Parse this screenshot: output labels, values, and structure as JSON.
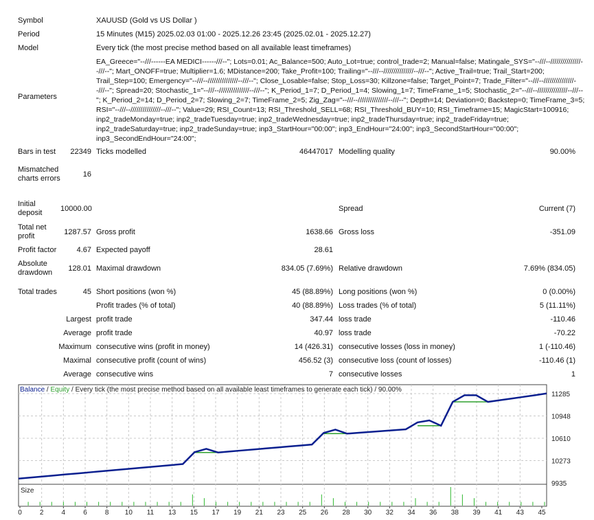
{
  "header": {
    "symbol_label": "Symbol",
    "symbol": "XAUUSD (Gold vs US Dollar )",
    "period_label": "Period",
    "period": "15 Minutes (M15) 2025.02.03 01:00 - 2025.12.26 23:45 (2025.02.01 - 2025.12.27)",
    "model_label": "Model",
    "model": "Every tick (the most precise method based on all available least timeframes)",
    "parameters_label": "Parameters",
    "parameters": "EA_Greece=\"--///------EA MEDICI------///--\"; Lots=0.01; Ac_Balance=500; Auto_Lot=true; control_trade=2; Manual=false; Matingale_SYS=\"--///--///////////////--///--\"; Mart_ONOFF=true; Multiplier=1.6; MDistance=200; Take_Profit=100; Trailing=\"--///--///////////////--///--\"; Active_Trail=true; Trail_Start=200; Trail_Step=100; Emergency=\"--///--///////////////--///--\"; Close_Losable=false; Stop_Loss=30; Killzone=false; Target_Point=7; Trade_Filter=\"--///--///////////////--///--\"; Spread=20; Stochastic_1=\"--///--///////////////--///--\"; K_Period_1=7; D_Period_1=4; Slowing_1=7; TimeFrame_1=5; Stochastic_2=\"--///--///////////////--///--\"; K_Period_2=14; D_Period_2=7; Slowing_2=7; TimeFrame_2=5; Zig_Zag=\"--///--///////////////--///--\"; Depth=14; Deviation=0; Backstep=0; TimeFrame_3=5; RSI=\"--///--///////////////--///--\"; Value=29; RSI_Count=13; RSI_Threshold_SELL=68; RSI_Threshold_BUY=10; RSI_Timeframe=15; MagicStart=100916; inp2_tradeMonday=true; inp2_tradeTuesday=true; inp2_tradeWednesday=true; inp2_tradeThursday=true; inp2_tradeFriday=true; inp2_tradeSaturday=true; inp2_tradeSunday=true; inp3_StartHour=\"00:00\"; inp3_EndHour=\"24:00\"; inp3_SecondStartHour=\"00:00\"; inp3_SecondEndHour=\"24:00\";"
  },
  "stats": [
    [
      "Bars in test",
      "22349",
      "Ticks modelled",
      "46447017",
      "Modelling quality",
      "90.00%"
    ],
    [
      "Mismatched charts errors",
      "16",
      "",
      "",
      "",
      ""
    ],
    [
      "Initial deposit",
      "10000.00",
      "",
      "",
      "Spread",
      "Current (7)"
    ],
    [
      "Total net profit",
      "1287.57",
      "Gross profit",
      "1638.66",
      "Gross loss",
      "-351.09"
    ],
    [
      "Profit factor",
      "4.67",
      "Expected payoff",
      "28.61",
      "",
      ""
    ],
    [
      "Absolute drawdown",
      "128.01",
      "Maximal drawdown",
      "834.05 (7.69%)",
      "Relative drawdown",
      "7.69% (834.05)"
    ],
    [
      "Total trades",
      "45",
      "Short positions (won %)",
      "45 (88.89%)",
      "Long positions (won %)",
      "0 (0.00%)"
    ],
    [
      "",
      "",
      "Profit trades (% of total)",
      "40 (88.89%)",
      "Loss trades (% of total)",
      "5 (11.11%)"
    ],
    [
      "Largest",
      "",
      "profit trade",
      "347.44",
      "loss trade",
      "-110.46"
    ],
    [
      "Average",
      "",
      "profit trade",
      "40.97",
      "loss trade",
      "-70.22"
    ],
    [
      "Maximum",
      "",
      "consecutive wins (profit in money)",
      "14 (426.31)",
      "consecutive losses (loss in money)",
      "1 (-110.46)"
    ],
    [
      "Maximal",
      "",
      "consecutive profit (count of wins)",
      "456.52 (3)",
      "consecutive loss (count of losses)",
      "-110.46 (1)"
    ],
    [
      "Average",
      "",
      "consecutive wins",
      "7",
      "consecutive losses",
      "1"
    ]
  ],
  "chart_data": {
    "type": "line",
    "legend": {
      "balance": "Balance",
      "sep": " / ",
      "equity": "Equity",
      "rest": " / Every tick (the most precise method based on all available least timeframes to generate each tick) / 90.00%"
    },
    "colors": {
      "balance": "#0a1f8f",
      "equity": "#2ea02e",
      "size": "#2eb82e",
      "grid": "#c8c8c8"
    },
    "y_ticks": [
      "11285",
      "10948",
      "10610",
      "10273",
      "9935"
    ],
    "ylim": [
      9935,
      11285
    ],
    "x_ticks": [
      "0",
      "2",
      "4",
      "6",
      "8",
      "10",
      "11",
      "13",
      "15",
      "17",
      "19",
      "21",
      "23",
      "25",
      "26",
      "28",
      "30",
      "32",
      "34",
      "36",
      "38",
      "39",
      "41",
      "43",
      "45"
    ],
    "size_label": "Size",
    "balance": [
      10000,
      10016,
      10031,
      10047,
      10063,
      10078,
      10094,
      10110,
      10126,
      10141,
      10157,
      10173,
      10188,
      10204,
      10220,
      10400,
      10450,
      10395,
      10410,
      10425,
      10440,
      10455,
      10470,
      10485,
      10500,
      10515,
      10690,
      10740,
      10680,
      10693,
      10706,
      10719,
      10732,
      10745,
      10850,
      10880,
      10800,
      11160,
      11260,
      11260,
      11160,
      11185,
      11210,
      11235,
      11260,
      11287.57
    ],
    "size": [
      0.01,
      0.01,
      0.01,
      0.01,
      0.01,
      0.01,
      0.01,
      0.01,
      0.01,
      0.01,
      0.01,
      0.01,
      0.01,
      0.01,
      0.01,
      0.03,
      0.02,
      0.01,
      0.01,
      0.01,
      0.01,
      0.01,
      0.01,
      0.01,
      0.01,
      0.01,
      0.03,
      0.02,
      0.01,
      0.01,
      0.01,
      0.01,
      0.01,
      0.01,
      0.02,
      0.01,
      0.01,
      0.05,
      0.03,
      0.02,
      0.01,
      0.01,
      0.01,
      0.01,
      0.01,
      0.01
    ],
    "grid": true
  }
}
